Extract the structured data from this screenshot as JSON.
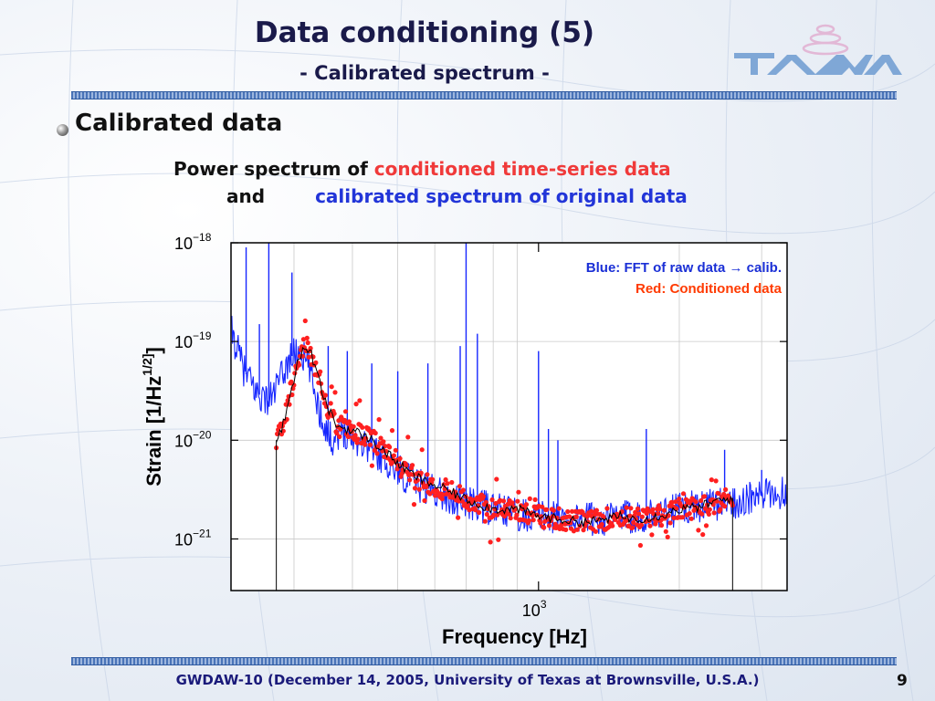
{
  "slide": {
    "title": "Data conditioning (5)",
    "subtitle": "- Calibrated spectrum -",
    "bullet": "Calibrated data",
    "desc_line1_prefix": "Power spectrum of ",
    "desc_line1_colored": "conditioned time-series data",
    "desc_line2_prefix": "and",
    "desc_line2_colored": "calibrated spectrum of original data",
    "footer": "GWDAW-10 (December 14, 2005, University of Texas at Brownsville, U.S.A.)",
    "page_number": "9"
  },
  "chart_data": {
    "type": "line",
    "xlabel": "Frequency  [Hz]",
    "ylabel": "Strain [1/Hz^1/2]",
    "xscale": "log",
    "yscale": "log",
    "xlim": [
      220,
      3400
    ],
    "ylim": [
      3e-22,
      1e-18
    ],
    "x_tick_labels": [
      {
        "base": "10",
        "exp": "3",
        "value": 1000
      }
    ],
    "y_tick_labels": [
      {
        "base": "10",
        "exp": "−18",
        "value": 1e-18
      },
      {
        "base": "10",
        "exp": "−19",
        "value": 1e-19
      },
      {
        "base": "10",
        "exp": "−20",
        "value": 1e-20
      },
      {
        "base": "10",
        "exp": "−21",
        "value": 1e-21
      }
    ],
    "grid": true,
    "legend_position": "top-right",
    "legend": [
      {
        "text": "Blue: FFT of raw data → calib.",
        "color": "#1a2fd6"
      },
      {
        "text": "Red:  Conditioned data",
        "color": "#ff3a00"
      }
    ],
    "series": [
      {
        "color": "#1626ff",
        "x": [
          220,
          235,
          250,
          265,
          280,
          295,
          310,
          325,
          340,
          360,
          380,
          400,
          430,
          460,
          500,
          550,
          600,
          650,
          700,
          800,
          900,
          1000,
          1200,
          1400,
          1600,
          1800,
          2000,
          2200,
          2500,
          2800,
          3100,
          3400
        ],
        "y": [
          1.3e-19,
          5e-20,
          3e-20,
          2.5e-20,
          4e-20,
          7e-20,
          8e-20,
          5e-20,
          2e-20,
          1e-20,
          1.3e-20,
          1.1e-20,
          9e-21,
          7e-21,
          5e-21,
          3.5e-21,
          3.2e-21,
          2.5e-21,
          2.3e-21,
          2e-21,
          1.8e-21,
          1.7e-21,
          1.6e-21,
          1.6e-21,
          1.7e-21,
          1.8e-21,
          2e-21,
          2.2e-21,
          2.3e-21,
          2.5e-21,
          2.8e-21,
          3e-21
        ],
        "peaks": [
          {
            "x": 237,
            "y": 9e-19
          },
          {
            "x": 253,
            "y": 1.5e-19
          },
          {
            "x": 265,
            "y": 1e-18
          },
          {
            "x": 297,
            "y": 5e-19
          },
          {
            "x": 355,
            "y": 9e-20
          },
          {
            "x": 390,
            "y": 8e-20
          },
          {
            "x": 440,
            "y": 6e-20
          },
          {
            "x": 500,
            "y": 5e-20
          },
          {
            "x": 580,
            "y": 6e-20
          },
          {
            "x": 680,
            "y": 9e-20
          },
          {
            "x": 700,
            "y": 1e-18
          },
          {
            "x": 740,
            "y": 1.2e-19
          },
          {
            "x": 1000,
            "y": 8e-20
          },
          {
            "x": 1050,
            "y": 1.3e-20
          },
          {
            "x": 1100,
            "y": 1e-20
          },
          {
            "x": 1700,
            "y": 1.3e-20
          },
          {
            "x": 2500,
            "y": 8e-21
          },
          {
            "x": 3000,
            "y": 5e-21
          }
        ]
      },
      {
        "color": "#ff2020",
        "x": [
          275,
          285,
          295,
          305,
          315,
          325,
          335,
          350,
          370,
          390,
          410,
          440,
          480,
          520,
          560,
          600,
          650,
          700,
          800,
          900,
          1000,
          1100,
          1200,
          1300,
          1400,
          1500,
          1600,
          1800,
          2000,
          2200,
          2400,
          2600
        ],
        "y": [
          1e-20,
          1.5e-20,
          3e-20,
          6e-20,
          8.5e-20,
          8e-20,
          5e-20,
          2.4e-20,
          1.4e-20,
          1.3e-20,
          1.2e-20,
          1e-20,
          7e-21,
          5e-21,
          4e-21,
          3.5e-21,
          3e-21,
          2.5e-21,
          2e-21,
          2e-21,
          1.7e-21,
          1.6e-21,
          1.5e-21,
          1.5e-21,
          1.6e-21,
          1.7e-21,
          1.6e-21,
          1.7e-21,
          2e-21,
          2.1e-21,
          2.4e-21,
          2.6e-21
        ]
      }
    ]
  }
}
